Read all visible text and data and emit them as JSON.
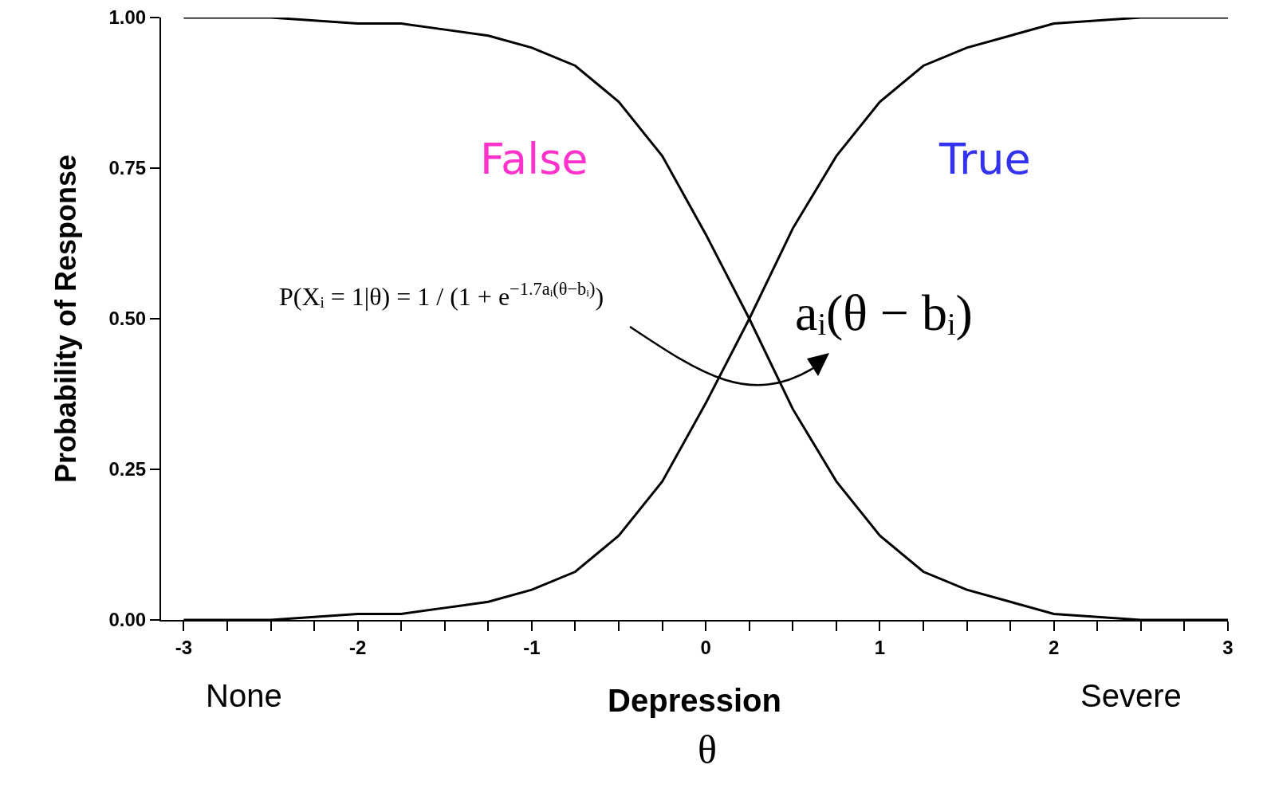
{
  "chart_data": {
    "type": "line",
    "xlabel": "Depression",
    "ylabel": "Probability of Response",
    "x": [
      -3,
      -2.5,
      -2,
      -1.75,
      -1.5,
      -1.25,
      -1,
      -0.75,
      -0.5,
      -0.25,
      0,
      0.25,
      0.5,
      0.75,
      1,
      1.25,
      1.5,
      1.75,
      2,
      2.5,
      3
    ],
    "series": [
      {
        "color": "#000000",
        "values": [
          1.0,
          1.0,
          0.99,
          0.99,
          0.98,
          0.97,
          0.95,
          0.92,
          0.86,
          0.77,
          0.64,
          0.5,
          0.35,
          0.23,
          0.14,
          0.08,
          0.05,
          0.03,
          0.01,
          0.0,
          0.0
        ]
      },
      {
        "color": "#000000",
        "values": [
          0.0,
          0.0,
          0.01,
          0.01,
          0.02,
          0.03,
          0.05,
          0.08,
          0.14,
          0.23,
          0.36,
          0.5,
          0.65,
          0.77,
          0.86,
          0.92,
          0.95,
          0.97,
          0.99,
          1.0,
          1.0
        ]
      }
    ],
    "xlim": [
      -3.13,
      3.0
    ],
    "xticks": [
      -3,
      {
        "value": -2.75,
        "label": null
      },
      {
        "value": -2.5,
        "label": null
      },
      {
        "value": -2.25,
        "label": null
      },
      -2,
      {
        "value": -1.75,
        "label": null
      },
      {
        "value": -1.5,
        "label": null
      },
      {
        "value": -1.25,
        "label": null
      },
      -1,
      {
        "value": -0.75,
        "label": null
      },
      {
        "value": -0.5,
        "label": null
      },
      {
        "value": -0.25,
        "label": null
      },
      0,
      {
        "value": 0.25,
        "label": null
      },
      {
        "value": 0.5,
        "label": null
      },
      {
        "value": 0.75,
        "label": null
      },
      1,
      {
        "value": 1.25,
        "label": null
      },
      {
        "value": 1.5,
        "label": null
      },
      {
        "value": 1.75,
        "label": null
      },
      2,
      {
        "value": 2.25,
        "label": null
      },
      {
        "value": 2.5,
        "label": null
      },
      {
        "value": 2.75,
        "label": null
      },
      3
    ],
    "ylim": [
      0,
      1
    ],
    "yticks": [
      {
        "value": 0,
        "label": "0.00"
      },
      {
        "value": 0.25,
        "label": "0.25"
      },
      {
        "value": 0.5,
        "label": "0.50"
      },
      {
        "value": 0.75,
        "label": "0.75"
      },
      {
        "value": 1,
        "label": "1.00"
      }
    ],
    "grid": false,
    "marker": "none",
    "line_style": "solid",
    "annotations": [
      "False",
      "True",
      "P(Xᵢ = 1|θ) = 1 / (1 + e$^{−1.7aᵢ(θ−bᵢ)}$)",
      "aᵢ(θ − bᵢ)",
      "None",
      "Severe",
      "θ"
    ]
  }
}
